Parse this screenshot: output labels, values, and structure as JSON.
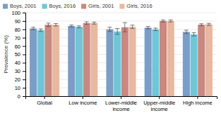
{
  "chart_data": {
    "type": "bar",
    "ylabel": "Prevalence (%)",
    "categories": [
      "Global",
      "Low income",
      "Lower-middle\nincome",
      "Upper-middle\nincome",
      "High income"
    ],
    "series": [
      {
        "name": "Boys, 2001",
        "color": "#7b9dc8",
        "values": [
          81.0,
          84.0,
          80.0,
          82.0,
          77.0
        ],
        "errors": [
          1.5,
          1.2,
          2.5,
          1.5,
          2.0
        ]
      },
      {
        "name": "Boys, 2016",
        "color": "#6ec6d6",
        "values": [
          79.0,
          83.0,
          77.5,
          80.0,
          74.0
        ],
        "errors": [
          1.5,
          1.2,
          3.5,
          1.5,
          2.0
        ]
      },
      {
        "name": "Girls, 2001",
        "color": "#c98880",
        "values": [
          85.5,
          87.5,
          82.5,
          90.0,
          85.5
        ],
        "errors": [
          2.0,
          1.5,
          5.5,
          1.2,
          1.2
        ]
      },
      {
        "name": "Girls, 2016",
        "color": "#e8b8a0",
        "values": [
          85.5,
          87.5,
          83.0,
          90.0,
          86.0
        ],
        "errors": [
          1.5,
          1.2,
          2.0,
          1.2,
          1.2
        ]
      }
    ],
    "ylim": [
      0,
      100
    ],
    "yticks": [
      0,
      10,
      20,
      30,
      40,
      50,
      60,
      70,
      80,
      90,
      100
    ],
    "grid": true,
    "legend": "upper left"
  }
}
